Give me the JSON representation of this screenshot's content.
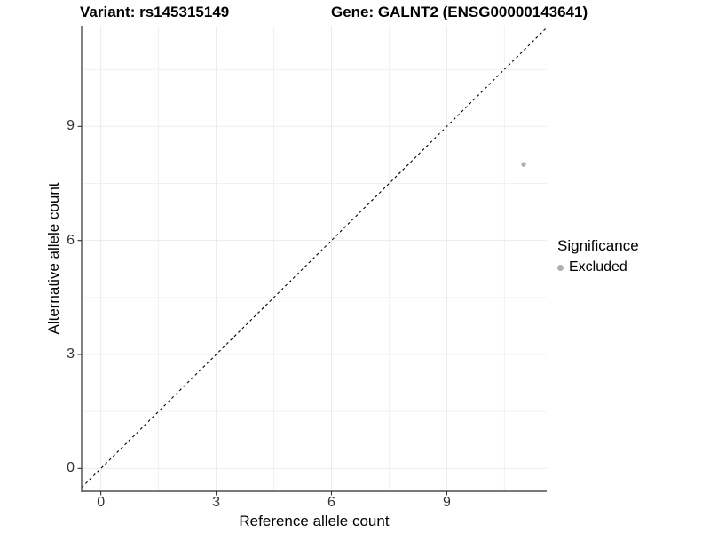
{
  "chart_data": {
    "type": "scatter",
    "titles": {
      "left": "Variant: rs145315149",
      "right": "Gene: GALNT2 (ENSG00000143641)"
    },
    "xlabel": "Reference allele count",
    "ylabel": "Alternative allele count",
    "xlim": [
      -0.5,
      11.6
    ],
    "ylim": [
      -0.6,
      11.65
    ],
    "x_ticks": [
      0,
      3,
      6,
      9
    ],
    "y_ticks": [
      0,
      3,
      6,
      9
    ],
    "x_minor_ticks": [
      1.5,
      4.5,
      7.5,
      10.5
    ],
    "y_minor_ticks": [
      1.5,
      4.5,
      7.5,
      10.5
    ],
    "grid": "major+minor",
    "reference_line": {
      "kind": "abline",
      "slope": 1,
      "intercept": 0,
      "linetype": "dashed",
      "color": "#000000"
    },
    "series": [
      {
        "name": "Excluded",
        "color": "#b0b0b0",
        "points": [
          [
            11,
            8
          ]
        ]
      }
    ],
    "legend": {
      "title": "Significance",
      "position": "right",
      "entries": [
        {
          "label": "Excluded",
          "color": "#b0b0b0"
        }
      ]
    },
    "colors": {
      "background": "#ffffff",
      "grid_major": "#ebebeb",
      "grid_minor": "#f1f1f1",
      "axis_line": "#4d4d4d",
      "tick_mark": "#333333",
      "tick_label": "#333333",
      "text": "#000000"
    }
  }
}
